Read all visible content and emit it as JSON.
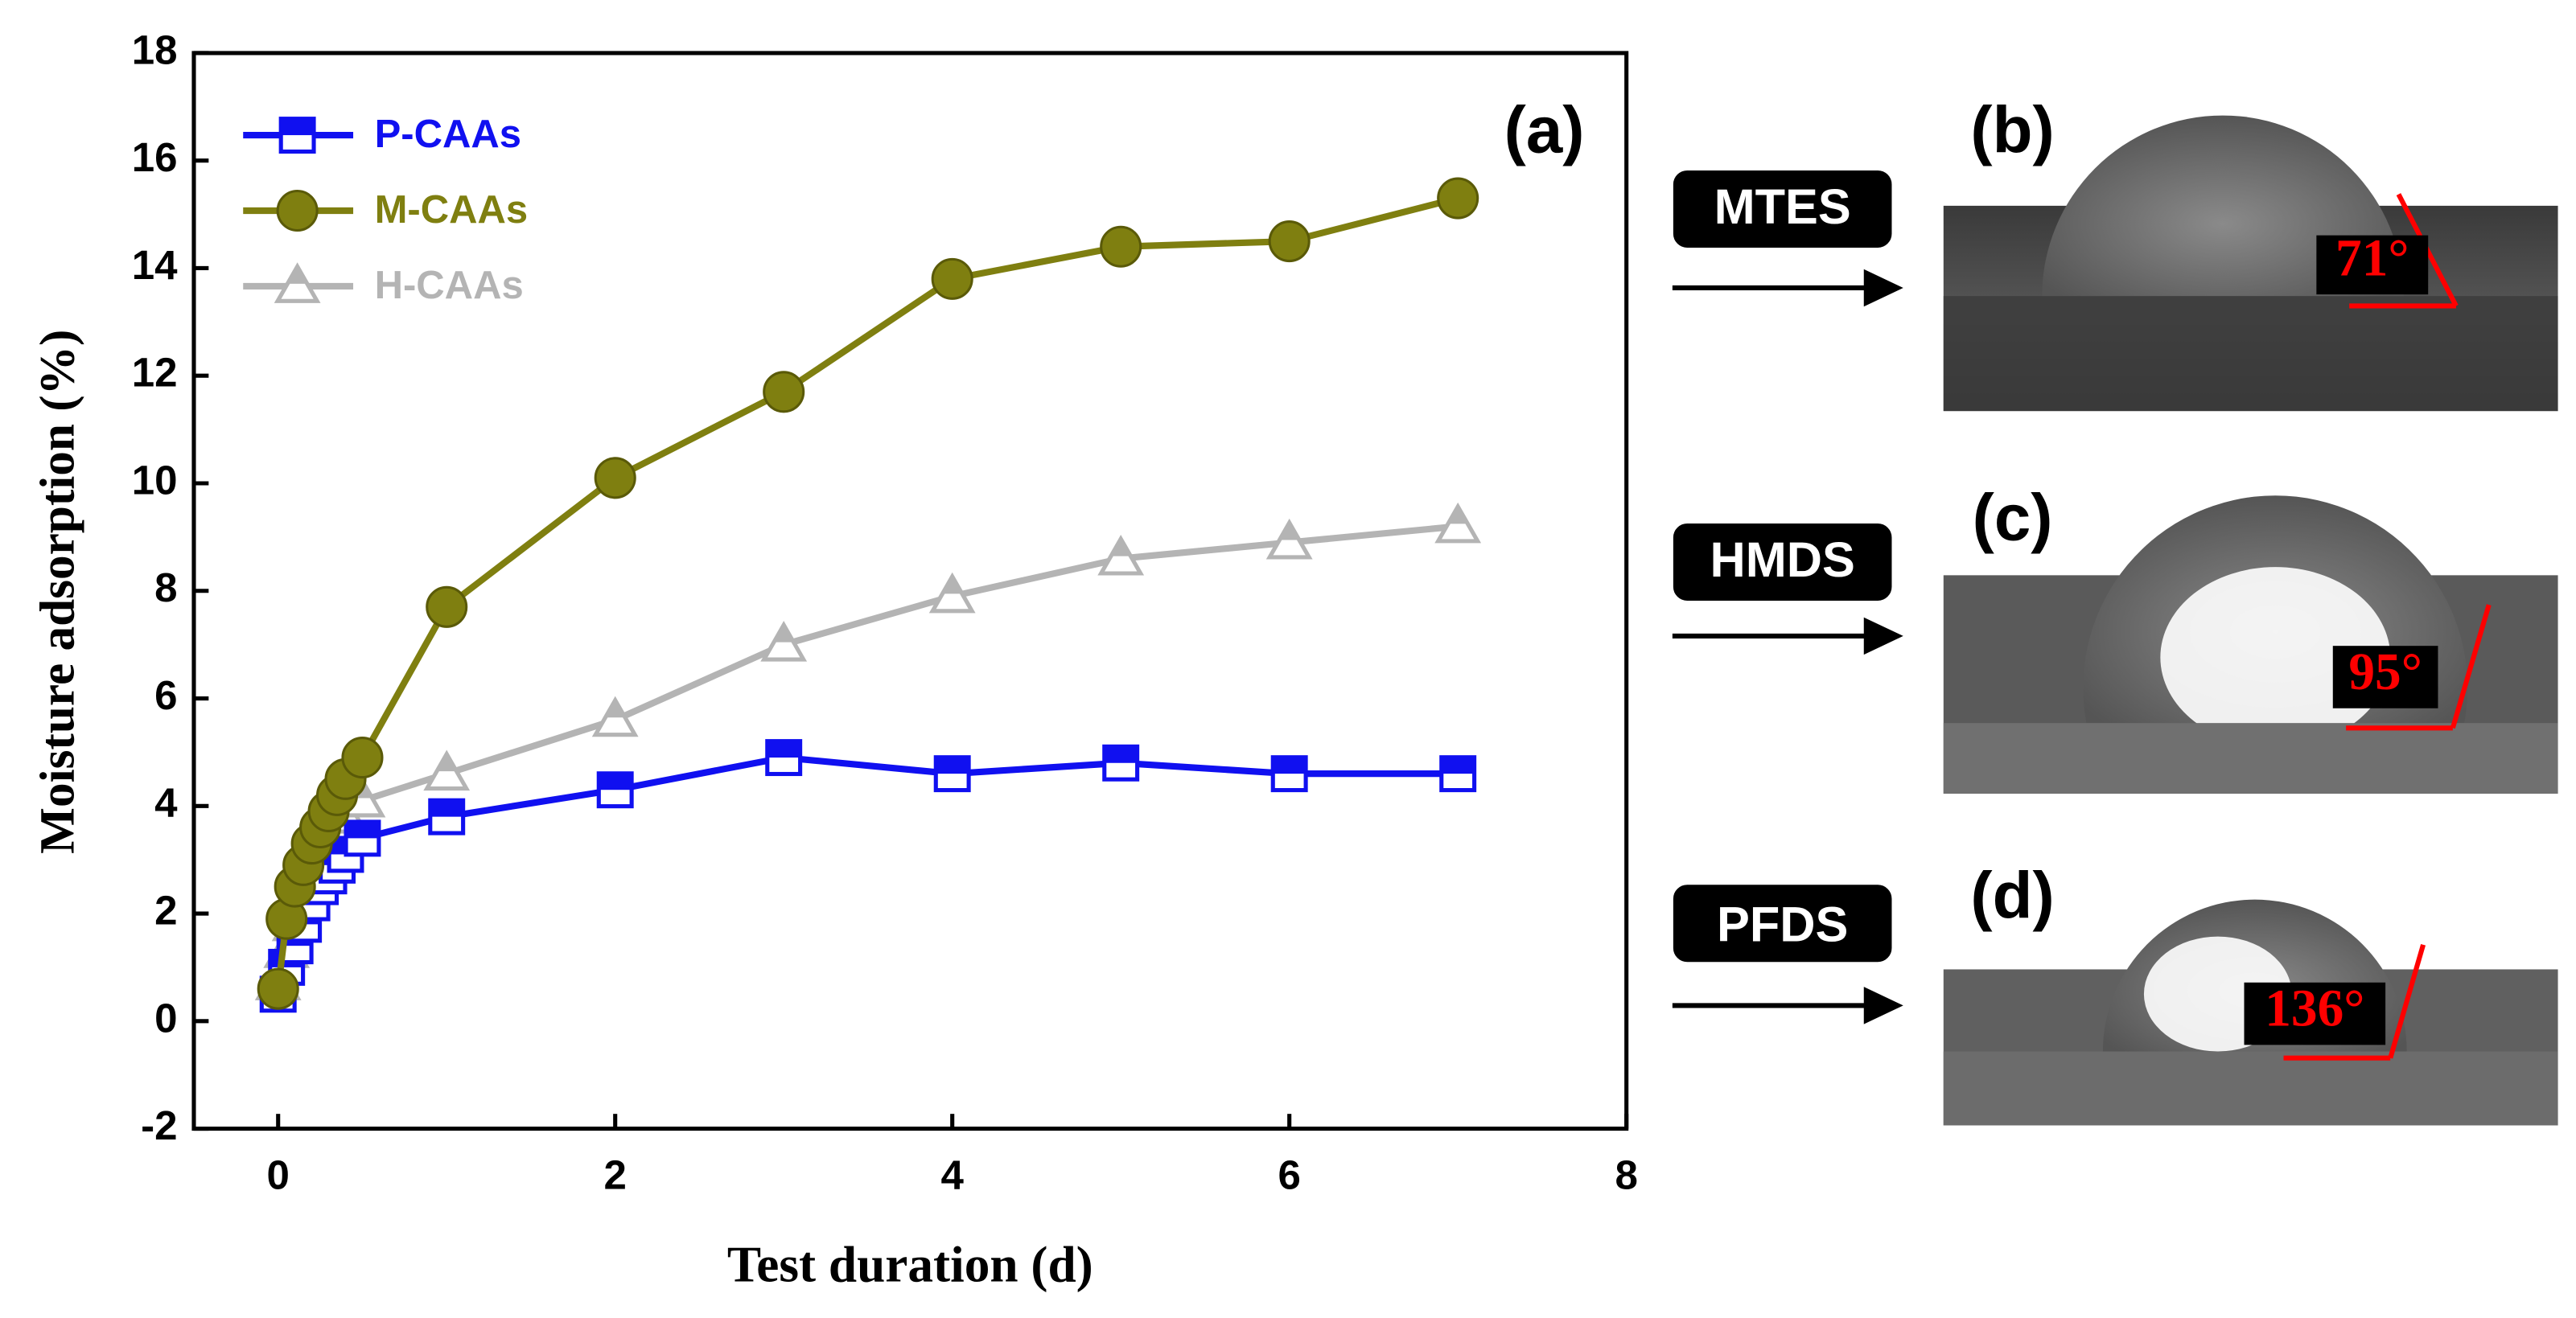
{
  "chart_data": {
    "type": "line",
    "xlabel": "Test duration (d)",
    "ylabel": "Moisture adsorption (%)",
    "annotation": "(a)",
    "x": [
      0,
      0.05,
      0.1,
      0.15,
      0.2,
      0.25,
      0.3,
      0.35,
      0.4,
      0.5,
      1,
      2,
      3,
      4,
      5,
      6,
      7
    ],
    "series": [
      {
        "name": "P-CAAs",
        "color": "#1010f0",
        "marker": "square",
        "values": [
          0.5,
          1.0,
          1.4,
          1.8,
          2.2,
          2.5,
          2.7,
          2.9,
          3.1,
          3.4,
          3.8,
          4.3,
          4.9,
          4.6,
          4.8,
          4.6,
          4.6
        ]
      },
      {
        "name": "M-CAAs",
        "color": "#7f7f10",
        "marker": "circle",
        "values": [
          0.6,
          1.9,
          2.5,
          2.9,
          3.3,
          3.6,
          3.9,
          4.2,
          4.5,
          4.9,
          7.7,
          10.1,
          11.7,
          13.8,
          14.4,
          14.5,
          15.3
        ]
      },
      {
        "name": "H-CAAs",
        "color": "#b4b4b4",
        "marker": "triangle",
        "values": [
          0.7,
          1.3,
          1.8,
          2.3,
          2.7,
          3.0,
          3.3,
          3.6,
          3.8,
          4.1,
          4.6,
          5.6,
          7.0,
          7.9,
          8.6,
          8.9,
          9.2
        ]
      }
    ],
    "xlim": [
      -0.5,
      8
    ],
    "xticks": [
      0,
      2,
      4,
      6,
      8
    ],
    "ylim": [
      -2,
      18
    ],
    "yticks": [
      -2,
      0,
      2,
      4,
      6,
      8,
      10,
      12,
      14,
      16,
      18
    ],
    "legend": "upper left"
  },
  "panels": [
    {
      "label": "(b)",
      "treatment": "MTES",
      "angle": "71°"
    },
    {
      "label": "(c)",
      "treatment": "HMDS",
      "angle": "95°"
    },
    {
      "label": "(d)",
      "treatment": "PFDS",
      "angle": "136°"
    }
  ]
}
